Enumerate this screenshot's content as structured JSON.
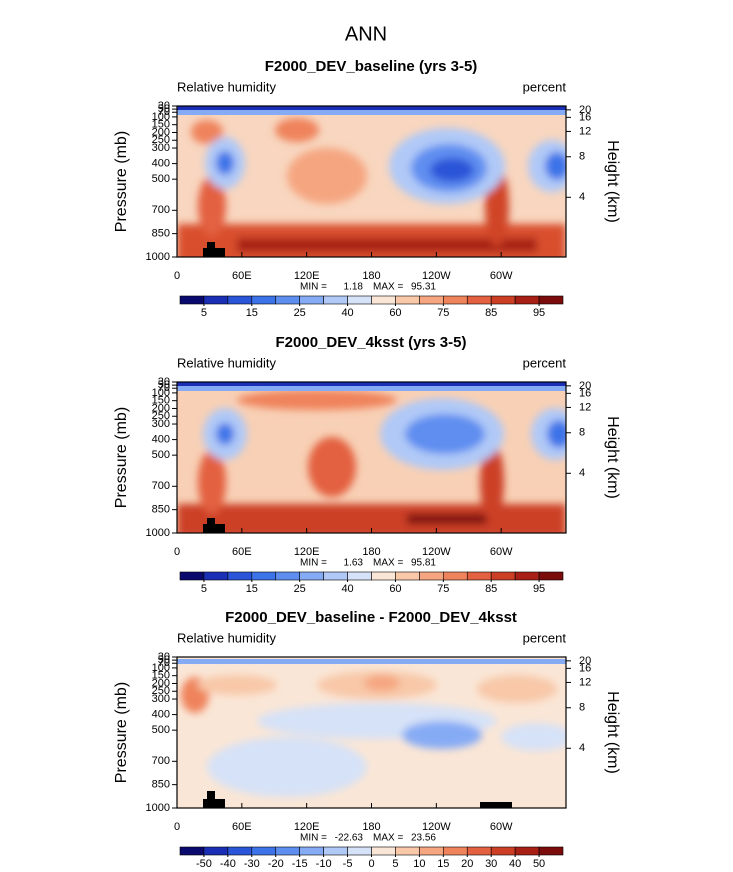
{
  "title": "ANN",
  "panels": [
    {
      "title": "F2000_DEV_baseline (yrs 3-5)",
      "left_label": "Relative humidity",
      "right_label": "percent",
      "ylabel": "Pressure (mb)",
      "y2label": "Height (km)",
      "xlim": [
        0,
        360
      ],
      "xticks": [
        0,
        {
          "value": 60,
          "label": "60E"
        },
        {
          "value": 120,
          "label": "120E"
        },
        180,
        {
          "value": 240,
          "label": "120W"
        },
        {
          "value": 300,
          "label": "60W"
        }
      ],
      "ylim": [
        1000,
        30
      ],
      "yticks": [
        30,
        50,
        70,
        100,
        150,
        200,
        250,
        300,
        400,
        500,
        700,
        850,
        1000
      ],
      "y2ticks": [
        4,
        8,
        12,
        16,
        20
      ],
      "min_label": "MIN =",
      "min": 1.18,
      "max_label": "MAX =",
      "max": 95.31,
      "colorbar": {
        "colors": [
          "#0a0a6e",
          "#1a2fb5",
          "#2a55d8",
          "#3d73e8",
          "#5e8ef0",
          "#86abf5",
          "#b0c9f7",
          "#d6e2f7",
          "#fae6d6",
          "#f8c8a8",
          "#f5a680",
          "#ef835c",
          "#e36040",
          "#cc3f25",
          "#a82015",
          "#7a0c0c"
        ],
        "labels": [
          5,
          15,
          25,
          40,
          60,
          75,
          85,
          95
        ]
      }
    },
    {
      "title": "F2000_DEV_4ksst (yrs 3-5)",
      "left_label": "Relative humidity",
      "right_label": "percent",
      "ylabel": "Pressure (mb)",
      "y2label": "Height (km)",
      "xlim": [
        0,
        360
      ],
      "xticks": [
        0,
        {
          "value": 60,
          "label": "60E"
        },
        {
          "value": 120,
          "label": "120E"
        },
        180,
        {
          "value": 240,
          "label": "120W"
        },
        {
          "value": 300,
          "label": "60W"
        }
      ],
      "ylim": [
        1000,
        30
      ],
      "yticks": [
        30,
        50,
        70,
        100,
        150,
        200,
        250,
        300,
        400,
        500,
        700,
        850,
        1000
      ],
      "y2ticks": [
        4,
        8,
        12,
        16,
        20
      ],
      "min_label": "MIN =",
      "min": 1.63,
      "max_label": "MAX =",
      "max": 95.81,
      "colorbar": {
        "colors": [
          "#0a0a6e",
          "#1a2fb5",
          "#2a55d8",
          "#3d73e8",
          "#5e8ef0",
          "#86abf5",
          "#b0c9f7",
          "#d6e2f7",
          "#fae6d6",
          "#f8c8a8",
          "#f5a680",
          "#ef835c",
          "#e36040",
          "#cc3f25",
          "#a82015",
          "#7a0c0c"
        ],
        "labels": [
          5,
          15,
          25,
          40,
          60,
          75,
          85,
          95
        ]
      }
    },
    {
      "title": "F2000_DEV_baseline - F2000_DEV_4ksst",
      "left_label": "Relative humidity",
      "right_label": "percent",
      "ylabel": "Pressure (mb)",
      "y2label": "Height (km)",
      "xlim": [
        0,
        360
      ],
      "xticks": [
        0,
        {
          "value": 60,
          "label": "60E"
        },
        {
          "value": 120,
          "label": "120E"
        },
        180,
        {
          "value": 240,
          "label": "120W"
        },
        {
          "value": 300,
          "label": "60W"
        }
      ],
      "ylim": [
        1000,
        30
      ],
      "yticks": [
        30,
        50,
        70,
        100,
        150,
        200,
        250,
        300,
        400,
        500,
        700,
        850,
        1000
      ],
      "y2ticks": [
        4,
        8,
        12,
        16,
        20
      ],
      "min_label": "MIN =",
      "min": -22.63,
      "max_label": "MAX =",
      "max": 23.56,
      "colorbar": {
        "colors": [
          "#0a0a6e",
          "#1a2fb5",
          "#2a55d8",
          "#3d73e8",
          "#5e8ef0",
          "#86abf5",
          "#b0c9f7",
          "#d6e2f7",
          "#fae6d6",
          "#f8c8a8",
          "#f5a680",
          "#ef835c",
          "#e36040",
          "#cc3f25",
          "#a82015",
          "#7a0c0c"
        ],
        "labels": [
          -50,
          -40,
          -30,
          -20,
          -15,
          -10,
          -5,
          0,
          5,
          10,
          15,
          20,
          30,
          40,
          50
        ]
      }
    }
  ]
}
